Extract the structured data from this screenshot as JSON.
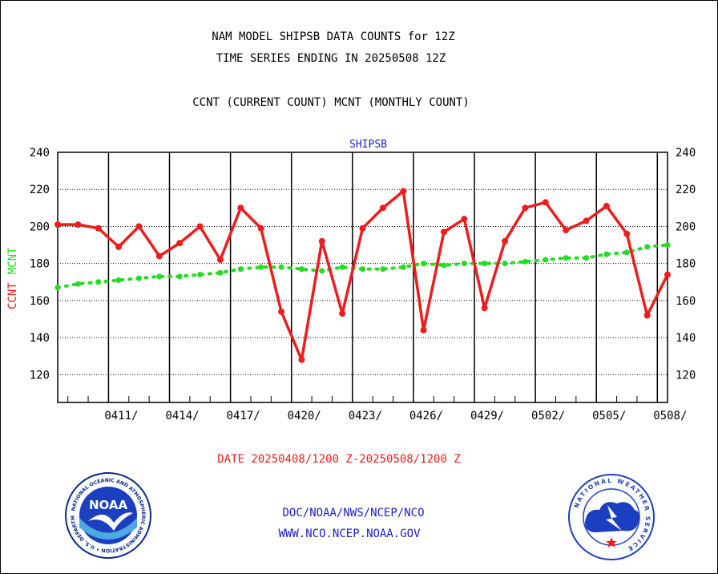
{
  "header": {
    "line1": "NAM MODEL SHIPSB DATA COUNTS for 12Z",
    "line2": "TIME SERIES ENDING IN 20250508 12Z",
    "line3": "CCNT (CURRENT COUNT) MCNT (MONTHLY COUNT)"
  },
  "footer": {
    "date_range": "DATE 20250408/1200 Z-20250508/1200 Z",
    "org_path": "DOC/NOAA/NWS/NCEP/NCO",
    "url": "WWW.NCO.NCEP.NOAA.GOV"
  },
  "logos": {
    "left_text": "NOAA",
    "left_ring": "NATIONAL OCEANIC AND ATMOSPHERIC ADMINISTRATION • U.S. DEPARTMENT OF COMMERCE",
    "right_ring": "NATIONAL WEATHER SERVICE"
  },
  "colors": {
    "ccnt": "#ee1c1c",
    "mcnt": "#22dd22",
    "title": "#1c1ccc",
    "date": "#ee1c1c"
  },
  "chart_data": {
    "type": "line",
    "title": "SHIPSB",
    "ylabel_parts": [
      "CCNT",
      "MCNT"
    ],
    "ylim": [
      105,
      240
    ],
    "yticks": [
      120,
      140,
      160,
      180,
      200,
      220,
      240
    ],
    "x_ticks": [
      "0411/",
      "0414/",
      "0417/",
      "0420/",
      "0423/",
      "0426/",
      "0429/",
      "0502/",
      "0505/",
      "0508/"
    ],
    "x_start": "2025-04-08 12Z",
    "x_end": "2025-05-08 12Z",
    "grid": true,
    "series": [
      {
        "name": "CCNT",
        "x": [
          "2025-04-08",
          "2025-04-09",
          "2025-04-10",
          "2025-04-11",
          "2025-04-12",
          "2025-04-13",
          "2025-04-14",
          "2025-04-15",
          "2025-04-16",
          "2025-04-17",
          "2025-04-18",
          "2025-04-19",
          "2025-04-20",
          "2025-04-21",
          "2025-04-22",
          "2025-04-23",
          "2025-04-24",
          "2025-04-25",
          "2025-04-26",
          "2025-04-27",
          "2025-04-28",
          "2025-04-29",
          "2025-04-30",
          "2025-05-01",
          "2025-05-02",
          "2025-05-03",
          "2025-05-04",
          "2025-05-05",
          "2025-05-06",
          "2025-05-07",
          "2025-05-08"
        ],
        "values": [
          201,
          201,
          199,
          189,
          200,
          184,
          191,
          200,
          182,
          210,
          199,
          154,
          128,
          192,
          153,
          199,
          210,
          219,
          144,
          197,
          204,
          156,
          192,
          210,
          213,
          198,
          203,
          211,
          196,
          152,
          174
        ]
      },
      {
        "name": "MCNT",
        "x": [
          "2025-04-08",
          "2025-04-09",
          "2025-04-10",
          "2025-04-11",
          "2025-04-12",
          "2025-04-13",
          "2025-04-14",
          "2025-04-15",
          "2025-04-16",
          "2025-04-17",
          "2025-04-18",
          "2025-04-19",
          "2025-04-20",
          "2025-04-21",
          "2025-04-22",
          "2025-04-23",
          "2025-04-24",
          "2025-04-25",
          "2025-04-26",
          "2025-04-27",
          "2025-04-28",
          "2025-04-29",
          "2025-04-30",
          "2025-05-01",
          "2025-05-02",
          "2025-05-03",
          "2025-05-04",
          "2025-05-05",
          "2025-05-06",
          "2025-05-07",
          "2025-05-08"
        ],
        "values": [
          167,
          169,
          170,
          171,
          172,
          173,
          173,
          174,
          175,
          177,
          178,
          178,
          177,
          176,
          178,
          177,
          177,
          178,
          180,
          179,
          180,
          180,
          180,
          181,
          182,
          183,
          183,
          185,
          186,
          189,
          190
        ]
      }
    ]
  }
}
